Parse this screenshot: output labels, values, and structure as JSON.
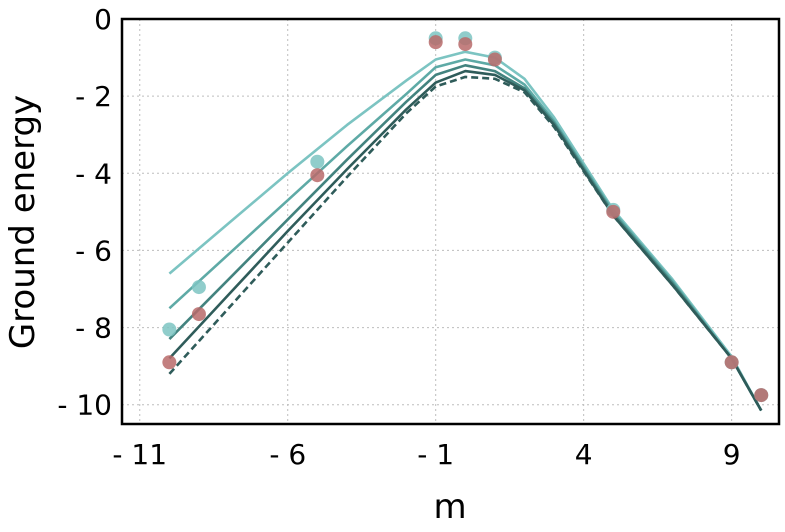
{
  "chart_data": {
    "type": "line",
    "title": "",
    "xlabel": "m",
    "ylabel": "Ground energy",
    "xlim": [
      -11.6,
      10.6
    ],
    "ylim": [
      -10.5,
      0
    ],
    "xticks": [
      -11,
      -6,
      -1,
      4,
      9
    ],
    "xtick_labels": [
      "- 11",
      "- 6",
      "- 1",
      "4",
      "9"
    ],
    "yticks": [
      0,
      -2,
      -4,
      -6,
      -8,
      -10
    ],
    "ytick_labels": [
      "0",
      "- 2",
      "- 4",
      "- 6",
      "- 8",
      "- 10"
    ],
    "grid": true,
    "legend": "none",
    "lines": [
      {
        "color": "#7cc4c2",
        "dashed": false,
        "x": [
          -10,
          -8,
          -6,
          -4,
          -2,
          -1,
          0,
          1,
          2,
          3,
          5,
          7,
          9,
          10
        ],
        "y": [
          -6.6,
          -5.3,
          -4.0,
          -2.75,
          -1.6,
          -1.05,
          -0.85,
          -1.0,
          -1.55,
          -2.55,
          -4.95,
          -6.75,
          -8.75,
          -10.15
        ]
      },
      {
        "color": "#5eaaa6",
        "dashed": false,
        "x": [
          -10,
          -8,
          -6,
          -4,
          -2,
          -1,
          0,
          1,
          2,
          3,
          5,
          7,
          9,
          10
        ],
        "y": [
          -7.5,
          -6.1,
          -4.7,
          -3.3,
          -1.95,
          -1.25,
          -1.05,
          -1.2,
          -1.7,
          -2.65,
          -5.0,
          -6.8,
          -8.8,
          -10.15
        ]
      },
      {
        "color": "#43837f",
        "dashed": false,
        "x": [
          -10,
          -8,
          -6,
          -4,
          -2,
          -1,
          0,
          1,
          2,
          3,
          5,
          7,
          9,
          10
        ],
        "y": [
          -8.3,
          -6.75,
          -5.2,
          -3.65,
          -2.15,
          -1.45,
          -1.2,
          -1.35,
          -1.8,
          -2.7,
          -5.05,
          -6.85,
          -8.8,
          -10.15
        ]
      },
      {
        "color": "#2f5c5a",
        "dashed": false,
        "x": [
          -10,
          -8,
          -6,
          -4,
          -2,
          -1,
          0,
          1,
          2,
          3,
          5,
          7,
          9,
          10
        ],
        "y": [
          -8.8,
          -7.15,
          -5.5,
          -3.9,
          -2.35,
          -1.65,
          -1.35,
          -1.45,
          -1.85,
          -2.75,
          -5.1,
          -6.9,
          -8.8,
          -10.15
        ]
      },
      {
        "color": "#2f5c5a",
        "dashed": true,
        "x": [
          -10,
          -8,
          -6,
          -4,
          -2,
          -1,
          0,
          1,
          2,
          3,
          5,
          7,
          9,
          10
        ],
        "y": [
          -9.2,
          -7.5,
          -5.8,
          -4.1,
          -2.45,
          -1.75,
          -1.5,
          -1.55,
          -1.9,
          -2.8,
          -5.1,
          -6.9,
          -8.8,
          -10.15
        ]
      }
    ],
    "points": [
      {
        "color": "#7cc4c2",
        "x": [
          -10,
          -9,
          -5,
          -1,
          0,
          1,
          5,
          9,
          10
        ],
        "y": [
          -8.05,
          -6.95,
          -3.7,
          -0.5,
          -0.5,
          -1.0,
          -4.95,
          -8.9,
          -9.75
        ]
      },
      {
        "color": "#b86a6a",
        "x": [
          -10,
          -9,
          -5,
          -1,
          0,
          1,
          5,
          9,
          10
        ],
        "y": [
          -8.9,
          -7.65,
          -4.05,
          -0.6,
          -0.65,
          -1.05,
          -5.0,
          -8.9,
          -9.75
        ]
      }
    ]
  }
}
